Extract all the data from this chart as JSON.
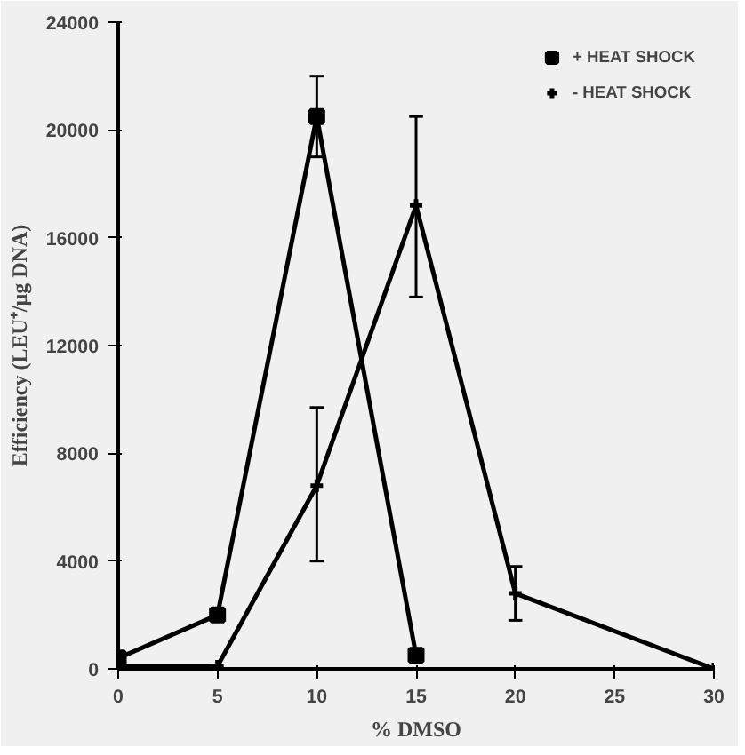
{
  "chart_data": {
    "type": "line",
    "xlabel": "% DMSO",
    "ylabel": "Efficiency (LEU⁺/µg DNA)",
    "xlim": [
      0,
      30
    ],
    "ylim": [
      0,
      24000
    ],
    "xticks": [
      0,
      5,
      10,
      15,
      20,
      25,
      30
    ],
    "yticks": [
      0,
      4000,
      8000,
      12000,
      16000,
      20000,
      24000
    ],
    "grid": false,
    "legend": "top right",
    "series": [
      {
        "name": "+ HEAT SHOCK",
        "color": "#000000",
        "marker": "square",
        "x": [
          0,
          5,
          10,
          15
        ],
        "values": [
          400,
          2000,
          20500,
          500
        ],
        "errors": [
          null,
          null,
          [
            19000,
            22000
          ],
          null
        ]
      },
      {
        "name": "- HEAT SHOCK",
        "color": "#000000",
        "marker": "cross",
        "x": [
          0,
          5,
          10,
          15,
          20,
          30
        ],
        "values": [
          100,
          100,
          6800,
          17200,
          2800,
          0
        ],
        "errors": [
          null,
          null,
          [
            4000,
            9700
          ],
          [
            13800,
            20500
          ],
          [
            1800,
            3800
          ],
          null
        ]
      }
    ]
  }
}
